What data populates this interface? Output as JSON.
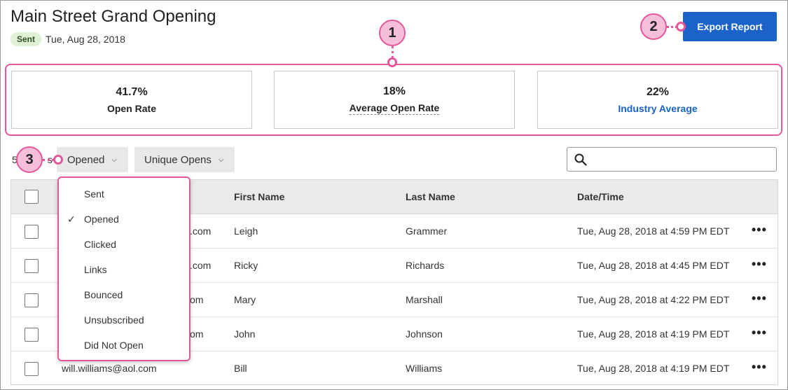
{
  "header": {
    "title": "Main Street Grand Opening",
    "status": "Sent",
    "date": "Tue, Aug 28, 2018"
  },
  "actions": {
    "export_label": "Export Report"
  },
  "stats": [
    {
      "value": "41.7%",
      "label": "Open Rate"
    },
    {
      "value": "18%",
      "label": "Average Open Rate"
    },
    {
      "value": "22%",
      "label": "Industry Average"
    }
  ],
  "callouts": [
    "1",
    "2",
    "3"
  ],
  "filters": {
    "count_prefix": "5",
    "count_suffix": "s",
    "activity": "Opened",
    "opens": "Unique Opens"
  },
  "search": {
    "placeholder": ""
  },
  "table": {
    "headers": [
      "First Name",
      "Last Name",
      "Date/Time"
    ],
    "rows": [
      {
        "email_tail": ".com",
        "first": "Leigh",
        "last": "Grammer",
        "datetime": "Tue, Aug 28, 2018 at 4:59 PM EDT"
      },
      {
        "email_tail": ".com",
        "first": "Ricky",
        "last": "Richards",
        "datetime": "Tue, Aug 28, 2018 at 4:45 PM EDT"
      },
      {
        "email_tail": "om",
        "first": "Mary",
        "last": "Marshall",
        "datetime": "Tue, Aug 28, 2018 at 4:22 PM EDT"
      },
      {
        "email_tail": "om",
        "first": "John",
        "last": "Johnson",
        "datetime": "Tue, Aug 28, 2018 at 4:19 PM EDT"
      },
      {
        "email_tail": "will.williams@aol.com",
        "first": "Bill",
        "last": "Williams",
        "datetime": "Tue, Aug 28, 2018 at 4:19 PM EDT"
      }
    ],
    "more_glyph": "•••"
  },
  "dropdown": {
    "items": [
      "Sent",
      "Opened",
      "Clicked",
      "Links",
      "Bounced",
      "Unsubscribed",
      "Did Not Open"
    ],
    "check_glyph": "✓"
  },
  "colors": {
    "accent": "#1b62c9",
    "callout": "#e5579b",
    "badge_bg": "#dff0d5"
  }
}
